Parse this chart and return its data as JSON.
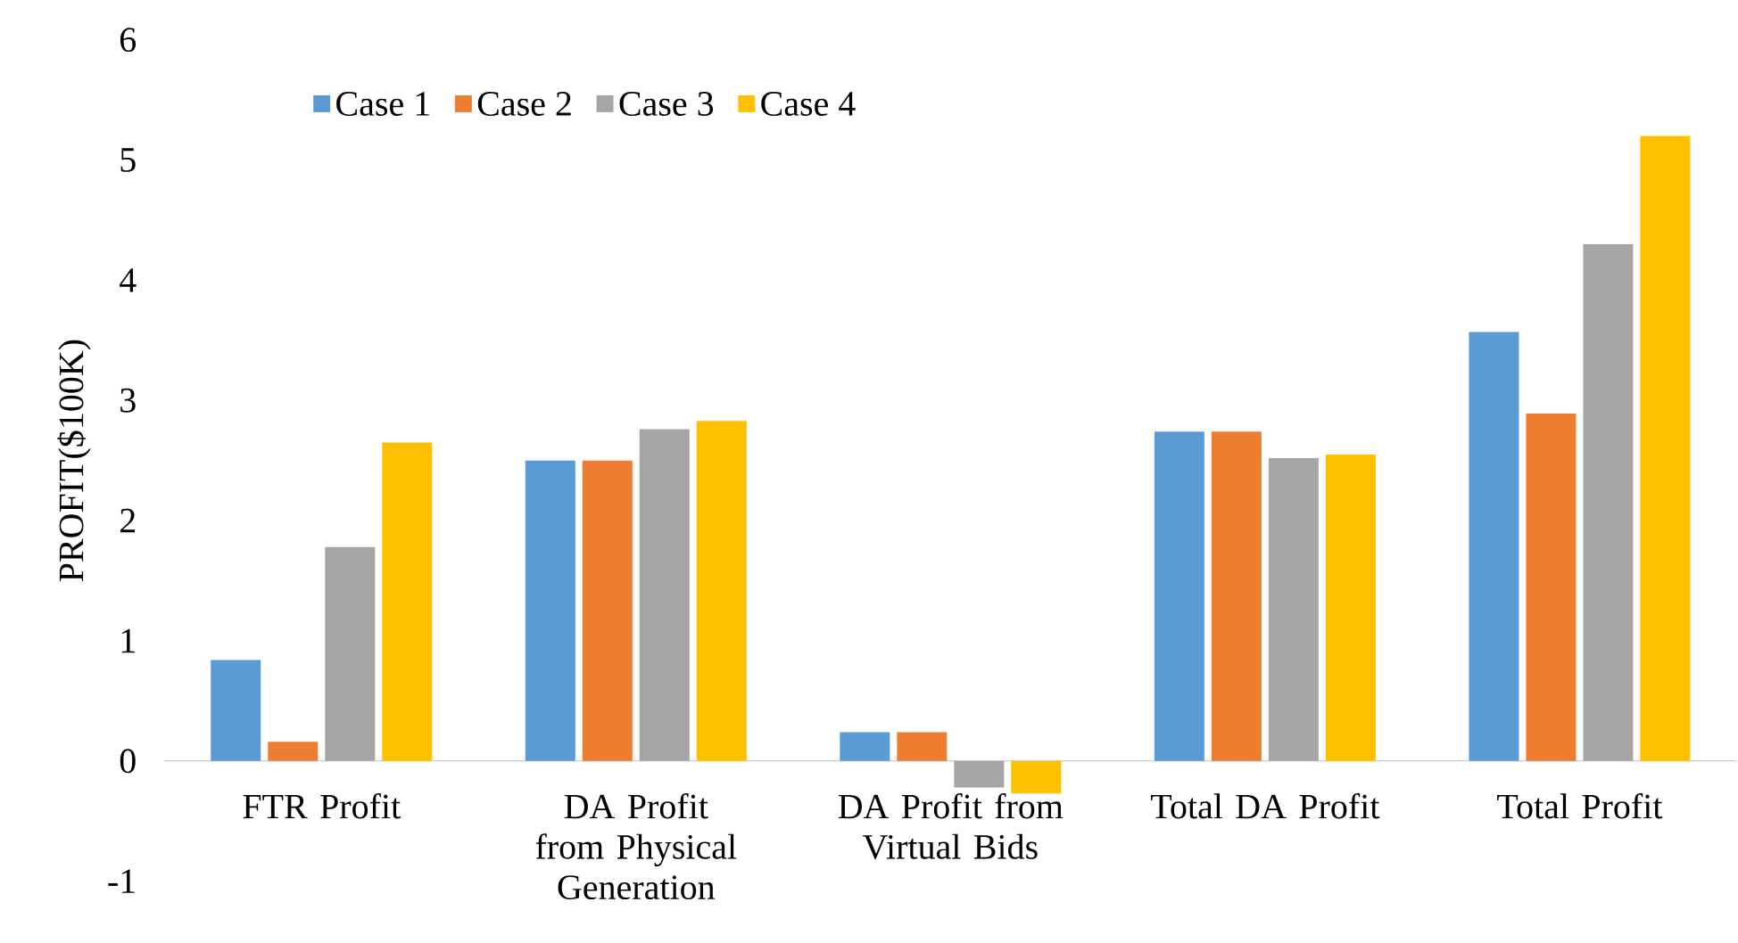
{
  "chart_data": {
    "type": "bar",
    "ylabel": "PROFIT($100K)",
    "categories": [
      "FTR Profit",
      "DA Profit from Physical Generation",
      "DA Profit from Virtual Bids",
      "Total DA Profit",
      "Total Profit"
    ],
    "series": [
      {
        "name": "Case 1",
        "color": "#5b9bd5",
        "values": [
          0.84,
          2.5,
          0.24,
          2.74,
          3.57
        ]
      },
      {
        "name": "Case 2",
        "color": "#ed7d31",
        "values": [
          0.16,
          2.5,
          0.24,
          2.74,
          2.89
        ]
      },
      {
        "name": "Case 3",
        "color": "#a5a5a5",
        "values": [
          1.78,
          2.76,
          -0.22,
          2.52,
          4.3
        ]
      },
      {
        "name": "Case 4",
        "color": "#ffc000",
        "values": [
          2.65,
          2.83,
          -0.27,
          2.55,
          5.2
        ]
      }
    ],
    "ylim": [
      -1,
      6
    ],
    "yticks": [
      -1,
      0,
      1,
      2,
      3,
      4,
      5,
      6
    ],
    "grid": false,
    "legend": "top left"
  }
}
